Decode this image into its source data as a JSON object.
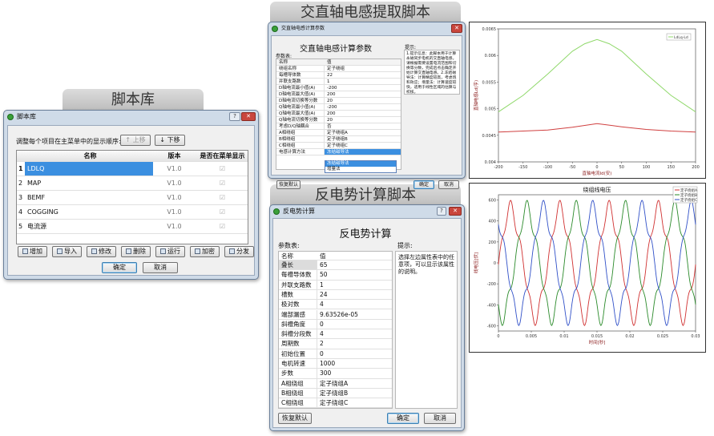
{
  "banners": {
    "script_lib": "脚本库",
    "inductance": "交直轴电感提取脚本",
    "bemf": "反电势计算脚本"
  },
  "script_lib": {
    "title": "脚本库",
    "instruction": "调整每个项目在主菜单中的显示顺序:",
    "up_label": "上移",
    "down_label": "下移",
    "columns": [
      "名称",
      "版本",
      "是否在菜单显示"
    ],
    "rows": [
      {
        "num": "1",
        "name": "LDLQ",
        "version": "V1.0",
        "shown": "☑"
      },
      {
        "num": "2",
        "name": "MAP",
        "version": "V1.0",
        "shown": "☑"
      },
      {
        "num": "3",
        "name": "BEMF",
        "version": "V1.0",
        "shown": "☑"
      },
      {
        "num": "4",
        "name": "COGGING",
        "version": "V1.0",
        "shown": "☑"
      },
      {
        "num": "5",
        "name": "电流源",
        "version": "V1.0",
        "shown": "☑"
      }
    ],
    "toolbar": [
      "增加",
      "导入",
      "修改",
      "删除",
      "运行",
      "加密",
      "分发"
    ],
    "ok": "确定",
    "cancel": "取消"
  },
  "inductance": {
    "title": "交直轴电感计算参数",
    "heading": "交直轴电感计算参数",
    "params_label": "参数表:",
    "hint_label": "提示:",
    "col_name": "名称",
    "col_value": "值",
    "params": [
      {
        "name": "绕组名称",
        "value": "定子绕组"
      },
      {
        "name": "每槽导体数",
        "value": "22"
      },
      {
        "name": "并联支路数",
        "value": "1"
      },
      {
        "name": "D轴电流最小值(A)",
        "value": "-200"
      },
      {
        "name": "D轴电流最大值(A)",
        "value": "200"
      },
      {
        "name": "D轴电流切换等分数",
        "value": "20"
      },
      {
        "name": "Q轴电流最小值(A)",
        "value": "-200"
      },
      {
        "name": "Q轴电流最大值(A)",
        "value": "200"
      },
      {
        "name": "Q轴电流切换等分数",
        "value": "20"
      },
      {
        "name": "考虑D/Q轴耦合",
        "value": "否"
      },
      {
        "name": "A相绕组",
        "value": "定子绕组A"
      },
      {
        "name": "B相绕组",
        "value": "定子绕组B"
      },
      {
        "name": "C相绕组",
        "value": "定子绕组C"
      },
      {
        "name": "电感计算方法",
        "value": "冻结磁导法"
      }
    ],
    "dropdown_options": [
      "冻结磁导法",
      "增量法"
    ],
    "hint_text": "1.提示信息：此脚本用于计算永磁同步电机的交直轴电感。请根据需要设置电流范围和切换等分数，完成后点击确定开始计算交直轴电感。2.冻结磁导法：计算精度较高，考虑饱和效应；增量法：计算速度较快，适用于线性区域的估算与校核。",
    "reset": "恢复默认",
    "ok": "确定",
    "cancel": "取消"
  },
  "bemf": {
    "title": "反电势计算",
    "heading": "反电势计算",
    "params_label": "参数表:",
    "hint_label": "提示:",
    "col_name": "名称",
    "col_value": "值",
    "params": [
      {
        "name": "叠长",
        "value": "65"
      },
      {
        "name": "每槽导体数",
        "value": "50"
      },
      {
        "name": "并联支路数",
        "value": "1"
      },
      {
        "name": "槽数",
        "value": "24"
      },
      {
        "name": "极对数",
        "value": "4"
      },
      {
        "name": "端部漏感",
        "value": "9.63526e-05"
      },
      {
        "name": "斜槽角度",
        "value": "0"
      },
      {
        "name": "斜槽分段数",
        "value": "4"
      },
      {
        "name": "周期数",
        "value": "2"
      },
      {
        "name": "初始位置",
        "value": "0"
      },
      {
        "name": "电机转速",
        "value": "1000"
      },
      {
        "name": "步数",
        "value": "300"
      },
      {
        "name": "A相绕组",
        "value": "定子绕组A"
      },
      {
        "name": "B相绕组",
        "value": "定子绕组B"
      },
      {
        "name": "C相绕组",
        "value": "定子绕组C"
      }
    ],
    "hint_text": "选择左边属性表中的任意项，可以显示该属性的说明。",
    "reset": "恢复默认",
    "ok": "确定",
    "cancel": "取消"
  },
  "chart_data": [
    {
      "type": "line",
      "title": "",
      "xlabel": "直轴电流Id(安)",
      "ylabel": "直轴电感Ld(亨)",
      "xlim": [
        -200,
        200
      ],
      "ylim": [
        0.004,
        0.0065
      ],
      "xticks": [
        "-200",
        "-150",
        "-100",
        "-50",
        "0",
        "50",
        "100",
        "150",
        "200"
      ],
      "yticks": [
        "0.004",
        "0.0045",
        "0.005",
        "0.0055",
        "0.006",
        "0.0065"
      ],
      "legend_position": "top-right",
      "series": [
        {
          "name": "LdLq-Ld",
          "color": "#8fd86a",
          "x": [
            -200,
            -150,
            -100,
            -50,
            -25,
            0,
            25,
            50,
            100,
            150,
            200
          ],
          "y": [
            0.00494,
            0.00525,
            0.00565,
            0.00608,
            0.00622,
            0.0063,
            0.00622,
            0.00608,
            0.00565,
            0.00525,
            0.00494
          ]
        },
        {
          "name": "",
          "color": "#d04040",
          "x": [
            -200,
            -150,
            -100,
            -50,
            0,
            50,
            100,
            150,
            200
          ],
          "y": [
            0.00456,
            0.00458,
            0.0046,
            0.00465,
            0.00472,
            0.00466,
            0.00461,
            0.00458,
            0.00456
          ]
        }
      ]
    },
    {
      "type": "line",
      "title": "绕组线电压",
      "xlabel": "时间[秒]",
      "ylabel": "线电压[伏]",
      "xlim": [
        0,
        0.03
      ],
      "ylim": [
        -650,
        650
      ],
      "xticks": [
        "0",
        "0.005",
        "0.01",
        "0.015",
        "0.02",
        "0.025",
        "0.03"
      ],
      "yticks": [
        "-600",
        "-400",
        "-200",
        "0",
        "200",
        "400",
        "600"
      ],
      "legend_position": "top-right",
      "amplitude": 500,
      "period": 0.0075,
      "series": [
        {
          "name": "定子绕组A",
          "color": "#d03030",
          "phase_deg": 0
        },
        {
          "name": "定子绕组B",
          "color": "#2a8a2a",
          "phase_deg": 120
        },
        {
          "name": "定子绕组C",
          "color": "#3050c8",
          "phase_deg": 240
        }
      ]
    }
  ]
}
